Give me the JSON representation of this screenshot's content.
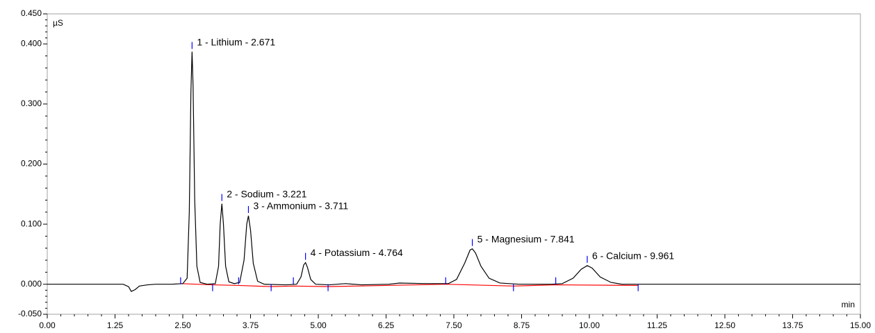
{
  "chart_data": {
    "type": "line",
    "y_label": "µS",
    "x_label": "min",
    "xlim": [
      0,
      15
    ],
    "ylim": [
      -0.05,
      0.45
    ],
    "xticks": [
      {
        "value": 0,
        "label": "0.00"
      },
      {
        "value": 1.25,
        "label": "1.25"
      },
      {
        "value": 2.5,
        "label": "2.50"
      },
      {
        "value": 3.75,
        "label": "3.75"
      },
      {
        "value": 5,
        "label": "5.00"
      },
      {
        "value": 6.25,
        "label": "6.25"
      },
      {
        "value": 7.5,
        "label": "7.50"
      },
      {
        "value": 8.75,
        "label": "8.75"
      },
      {
        "value": 10,
        "label": "10.00"
      },
      {
        "value": 11.25,
        "label": "11.25"
      },
      {
        "value": 12.5,
        "label": "12.50"
      },
      {
        "value": 13.75,
        "label": "13.75"
      },
      {
        "value": 15,
        "label": "15.00"
      }
    ],
    "yticks": [
      {
        "value": -0.05,
        "label": "-0.050"
      },
      {
        "value": 0,
        "label": "0.000"
      },
      {
        "value": 0.1,
        "label": "0.100"
      },
      {
        "value": 0.2,
        "label": "0.200"
      },
      {
        "value": 0.3,
        "label": "0.300"
      },
      {
        "value": 0.4,
        "label": "0.400"
      },
      {
        "value": 0.45,
        "label": "0.450"
      }
    ],
    "series": [
      {
        "color": "#000000",
        "x": [
          0,
          1.4,
          1.5,
          1.55,
          1.62,
          1.7,
          1.85,
          2.0,
          2.3,
          2.5,
          2.58,
          2.62,
          2.65,
          2.671,
          2.69,
          2.72,
          2.76,
          2.82,
          2.95,
          3.1,
          3.16,
          3.19,
          3.221,
          3.25,
          3.29,
          3.35,
          3.45,
          3.55,
          3.63,
          3.68,
          3.711,
          3.75,
          3.8,
          3.88,
          4.0,
          4.4,
          4.6,
          4.68,
          4.73,
          4.764,
          4.8,
          4.86,
          4.95,
          5.2,
          5.5,
          5.8,
          6.3,
          6.5,
          7.0,
          7.4,
          7.55,
          7.7,
          7.8,
          7.841,
          7.9,
          8.0,
          8.15,
          8.35,
          8.7,
          9.3,
          9.5,
          9.7,
          9.85,
          9.961,
          10.05,
          10.2,
          10.4,
          10.6,
          11.5,
          13,
          15
        ],
        "values": [
          0,
          0,
          -0.004,
          -0.012,
          -0.009,
          -0.003,
          -0.001,
          0,
          0,
          0.001,
          0.01,
          0.12,
          0.32,
          0.387,
          0.33,
          0.14,
          0.03,
          0.003,
          0,
          0.001,
          0.03,
          0.1,
          0.134,
          0.1,
          0.03,
          0.004,
          0.001,
          0.003,
          0.04,
          0.1,
          0.114,
          0.09,
          0.035,
          0.005,
          0,
          -0.001,
          0,
          0.012,
          0.032,
          0.036,
          0.028,
          0.008,
          0,
          -0.001,
          0.001,
          -0.001,
          0,
          0.002,
          0.001,
          0.001,
          0.008,
          0.035,
          0.057,
          0.059,
          0.052,
          0.03,
          0.01,
          0.002,
          0,
          0,
          0.001,
          0.01,
          0.025,
          0.031,
          0.027,
          0.012,
          0.003,
          0,
          0,
          0,
          0
        ]
      },
      {
        "color": "#ff0000",
        "x": [
          2.46,
          3.05,
          3.53,
          4.13,
          4.54,
          5.18,
          7.35,
          8.6,
          9.38,
          10.9
        ],
        "values": [
          0.001,
          -0.001,
          -0.002,
          -0.004,
          -0.003,
          -0.004,
          0,
          -0.003,
          -0.001,
          -0.002
        ]
      }
    ],
    "peak_delimiters": [
      2.46,
      3.05,
      3.53,
      4.13,
      4.54,
      5.18,
      7.35,
      8.6,
      9.38,
      10.9
    ],
    "delimiter_color": "#0000ff",
    "annotations": [
      {
        "text": "1 - Lithium - 2.671",
        "x": 2.671,
        "y": 0.387
      },
      {
        "text": "2 - Sodium - 3.221",
        "x": 3.221,
        "y": 0.134
      },
      {
        "text": "3 - Ammonium - 3.711",
        "x": 3.711,
        "y": 0.114
      },
      {
        "text": "4 - Potassium - 4.764",
        "x": 4.764,
        "y": 0.036
      },
      {
        "text": "5 - Magnesium - 7.841",
        "x": 7.841,
        "y": 0.059
      },
      {
        "text": "6 - Calcium - 9.961",
        "x": 9.961,
        "y": 0.031
      }
    ]
  }
}
